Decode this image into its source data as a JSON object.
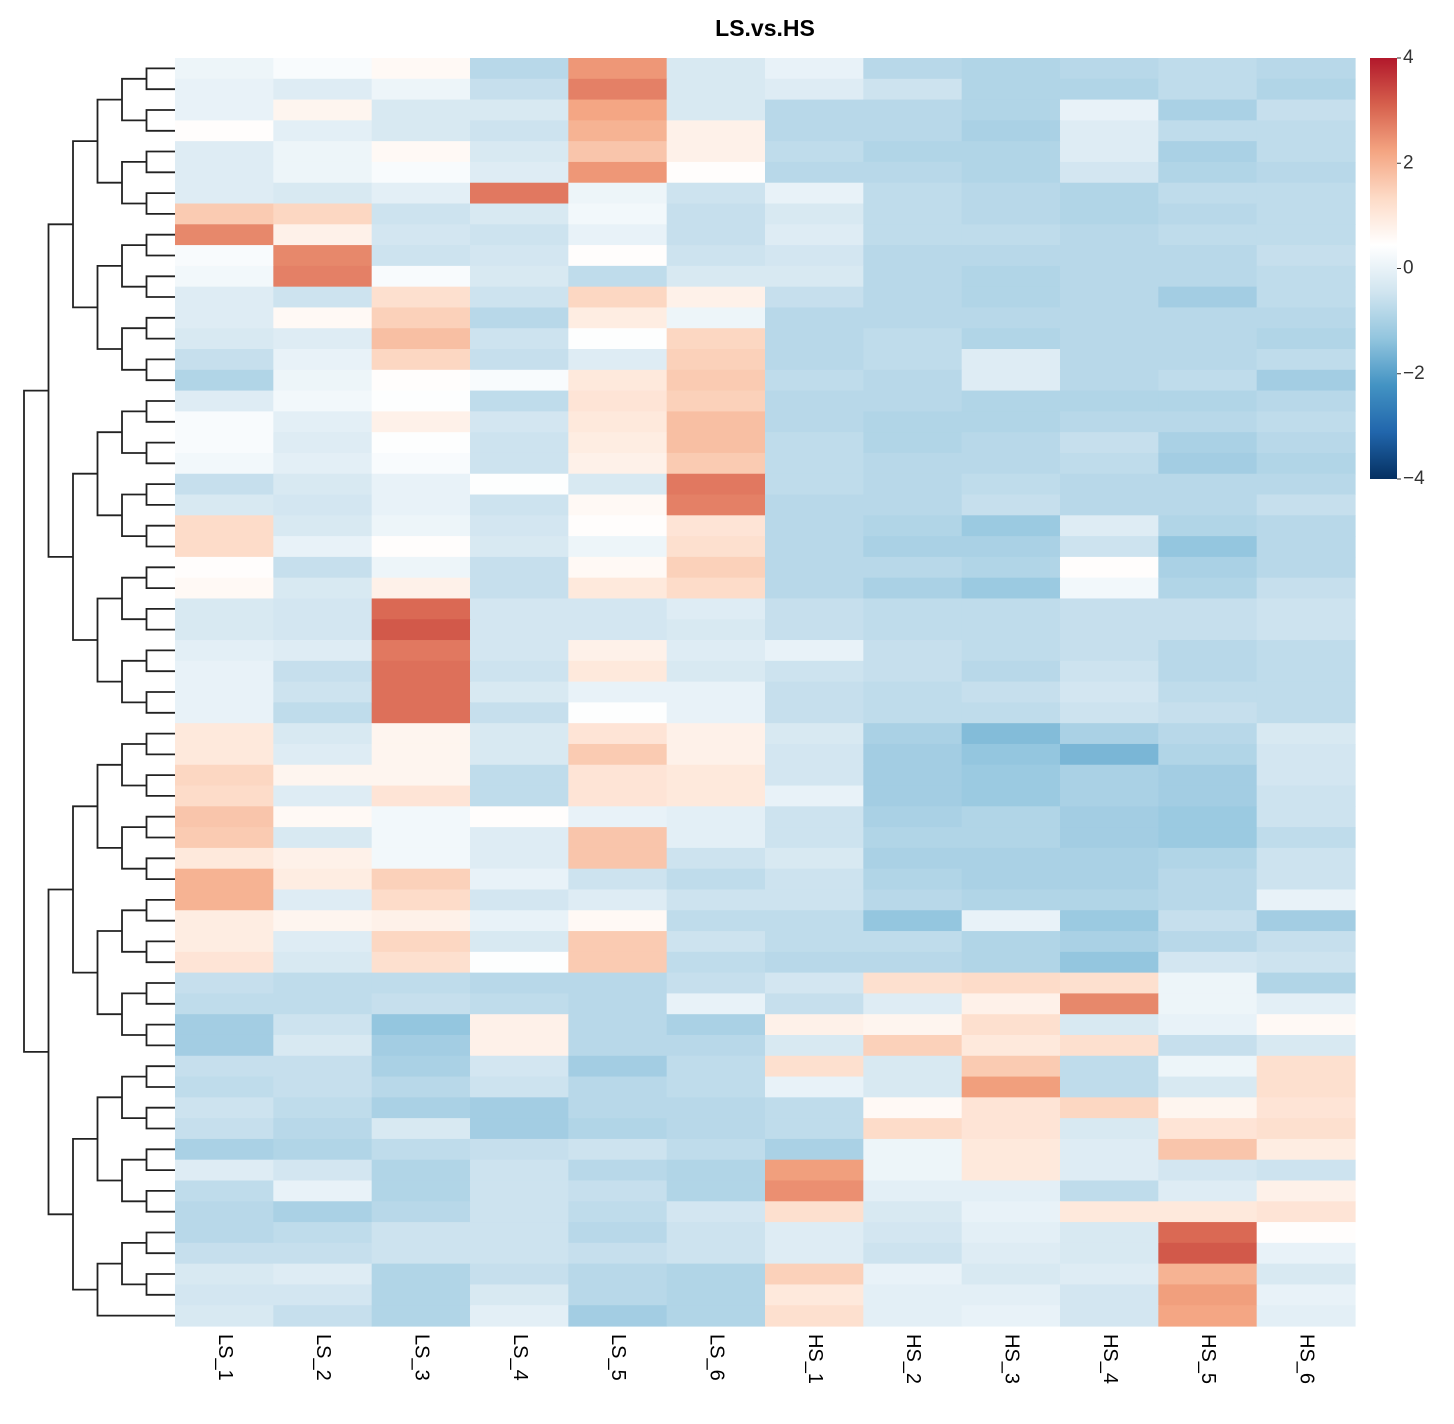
{
  "chart_data": {
    "type": "heatmap",
    "title": "LS.vs.HS",
    "columns": [
      "LS_1",
      "LS_2",
      "LS_3",
      "LS_4",
      "LS_5",
      "LS_6",
      "HS_1",
      "HS_2",
      "HS_3",
      "HS_4",
      "HS_5",
      "HS_6"
    ],
    "color_scale": {
      "min": -4,
      "max": 4,
      "ticks": [
        4,
        2,
        0,
        -2,
        -4
      ],
      "colors": [
        "#053061",
        "#2166ac",
        "#4393c3",
        "#92c5de",
        "#d1e5f0",
        "#ffffff",
        "#fddbc7",
        "#f4a582",
        "#d6604d",
        "#b2182b"
      ]
    },
    "legend_position": "right",
    "dendrogram": "rows",
    "values": [
      [
        0.1,
        0.3,
        0.6,
        -0.8,
        2.4,
        -0.3,
        0.0,
        -0.8,
        -0.9,
        -0.8,
        -0.7,
        -0.8
      ],
      [
        0.0,
        -0.2,
        0.1,
        -0.6,
        2.7,
        -0.3,
        -0.2,
        -0.5,
        -0.9,
        -0.9,
        -0.7,
        -0.9
      ],
      [
        0.0,
        0.7,
        -0.3,
        -0.3,
        2.2,
        -0.3,
        -0.8,
        -0.8,
        -0.9,
        0.0,
        -1.0,
        -0.6
      ],
      [
        0.5,
        -0.1,
        -0.3,
        -0.5,
        2.0,
        0.8,
        -0.8,
        -0.8,
        -1.0,
        -0.2,
        -0.7,
        -0.7
      ],
      [
        -0.2,
        0.1,
        0.6,
        -0.3,
        1.7,
        0.8,
        -0.7,
        -0.9,
        -0.9,
        -0.2,
        -1.0,
        -0.7
      ],
      [
        -0.2,
        0.1,
        0.3,
        -0.2,
        2.4,
        0.5,
        -0.8,
        -0.8,
        -0.9,
        -0.4,
        -0.9,
        -0.8
      ],
      [
        -0.2,
        -0.3,
        -0.1,
        2.8,
        0.1,
        -0.5,
        0.0,
        -0.7,
        -0.8,
        -0.9,
        -0.7,
        -0.7
      ],
      [
        1.6,
        1.4,
        -0.5,
        -0.3,
        0.2,
        -0.6,
        -0.3,
        -0.7,
        -0.8,
        -0.9,
        -0.8,
        -0.7
      ],
      [
        2.6,
        0.8,
        -0.4,
        -0.5,
        0.0,
        -0.6,
        -0.2,
        -0.7,
        -0.7,
        -0.8,
        -0.7,
        -0.7
      ],
      [
        0.3,
        2.6,
        -0.5,
        -0.4,
        0.5,
        -0.5,
        -0.4,
        -0.8,
        -0.8,
        -0.8,
        -0.8,
        -0.6
      ],
      [
        0.2,
        2.7,
        0.3,
        -0.3,
        -0.7,
        -0.3,
        -0.3,
        -0.8,
        -0.9,
        -0.8,
        -0.8,
        -0.7
      ],
      [
        -0.2,
        -0.5,
        1.2,
        -0.5,
        1.4,
        0.8,
        -0.6,
        -0.8,
        -0.9,
        -0.8,
        -1.1,
        -0.7
      ],
      [
        -0.2,
        0.6,
        1.5,
        -0.8,
        0.9,
        0.1,
        -0.8,
        -0.8,
        -0.8,
        -0.8,
        -0.8,
        -0.8
      ],
      [
        -0.3,
        -0.2,
        1.8,
        -0.5,
        0.4,
        1.4,
        -0.8,
        -0.7,
        -0.9,
        -0.8,
        -0.8,
        -0.9
      ],
      [
        -0.6,
        0.0,
        1.4,
        -0.6,
        -0.2,
        1.5,
        -0.8,
        -0.7,
        -0.2,
        -0.8,
        -0.8,
        -0.7
      ],
      [
        -0.9,
        0.1,
        0.5,
        0.3,
        1.0,
        1.6,
        -0.7,
        -0.8,
        -0.2,
        -0.8,
        -0.7,
        -1.1
      ],
      [
        -0.2,
        0.2,
        0.4,
        -0.7,
        1.1,
        1.5,
        -0.8,
        -0.8,
        -0.9,
        -0.9,
        -0.9,
        -0.8
      ],
      [
        0.3,
        -0.1,
        0.8,
        -0.4,
        1.0,
        1.8,
        -0.8,
        -0.9,
        -0.9,
        -0.8,
        -0.8,
        -0.7
      ],
      [
        0.3,
        -0.2,
        0.4,
        -0.5,
        0.9,
        1.8,
        -0.7,
        -0.9,
        -0.8,
        -0.6,
        -1.0,
        -0.8
      ],
      [
        0.2,
        -0.1,
        0.3,
        -0.5,
        0.8,
        1.6,
        -0.7,
        -0.8,
        -0.8,
        -0.7,
        -1.1,
        -0.9
      ],
      [
        -0.6,
        -0.3,
        0.0,
        0.4,
        -0.3,
        2.8,
        -0.7,
        -0.8,
        -0.7,
        -0.8,
        -0.8,
        -0.8
      ],
      [
        -0.3,
        -0.4,
        0.0,
        -0.5,
        0.6,
        2.7,
        -0.8,
        -0.8,
        -0.6,
        -0.8,
        -0.8,
        -0.6
      ],
      [
        1.3,
        -0.3,
        0.1,
        -0.4,
        0.5,
        1.1,
        -0.8,
        -0.9,
        -1.2,
        -0.2,
        -0.9,
        -0.8
      ],
      [
        1.3,
        0.0,
        0.5,
        -0.3,
        0.1,
        1.2,
        -0.8,
        -1.0,
        -1.0,
        -0.5,
        -1.3,
        -0.8
      ],
      [
        0.5,
        -0.6,
        0.1,
        -0.6,
        0.6,
        1.5,
        -0.8,
        -0.8,
        -0.9,
        0.5,
        -1.0,
        -0.8
      ],
      [
        0.6,
        -0.3,
        0.8,
        -0.6,
        1.0,
        1.3,
        -0.8,
        -1.0,
        -1.2,
        0.2,
        -0.9,
        -0.6
      ],
      [
        -0.3,
        -0.4,
        3.0,
        -0.4,
        -0.4,
        -0.2,
        -0.6,
        -0.7,
        -0.7,
        -0.6,
        -0.6,
        -0.5
      ],
      [
        -0.3,
        -0.4,
        3.2,
        -0.4,
        -0.4,
        -0.3,
        -0.6,
        -0.7,
        -0.7,
        -0.6,
        -0.6,
        -0.5
      ],
      [
        -0.1,
        -0.2,
        2.8,
        -0.4,
        0.8,
        -0.2,
        0.0,
        -0.6,
        -0.7,
        -0.6,
        -0.8,
        -0.7
      ],
      [
        0.0,
        -0.6,
        2.9,
        -0.5,
        1.0,
        -0.3,
        -0.5,
        -0.6,
        -0.8,
        -0.5,
        -0.8,
        -0.7
      ],
      [
        0.0,
        -0.5,
        2.9,
        -0.3,
        0.0,
        0.0,
        -0.6,
        -0.7,
        -0.6,
        -0.4,
        -0.7,
        -0.7
      ],
      [
        0.0,
        -0.7,
        2.9,
        -0.6,
        0.4,
        0.0,
        -0.6,
        -0.7,
        -0.7,
        -0.5,
        -0.6,
        -0.7
      ],
      [
        1.0,
        -0.3,
        0.7,
        -0.3,
        1.1,
        0.8,
        -0.3,
        -1.0,
        -1.5,
        -1.0,
        -0.8,
        -0.3
      ],
      [
        1.0,
        -0.2,
        0.7,
        -0.3,
        1.6,
        0.8,
        -0.4,
        -1.1,
        -1.3,
        -1.6,
        -0.9,
        -0.4
      ],
      [
        1.4,
        0.7,
        0.7,
        -0.7,
        1.1,
        1.0,
        -0.4,
        -1.1,
        -1.2,
        -1.0,
        -1.1,
        -0.4
      ],
      [
        1.3,
        -0.2,
        1.1,
        -0.7,
        1.1,
        1.0,
        0.0,
        -1.1,
        -1.2,
        -1.0,
        -1.1,
        -0.5
      ],
      [
        1.7,
        0.6,
        0.2,
        0.5,
        0.0,
        -0.1,
        -0.5,
        -1.0,
        -0.9,
        -1.1,
        -1.2,
        -0.5
      ],
      [
        1.6,
        -0.3,
        0.2,
        -0.2,
        1.7,
        -0.1,
        -0.5,
        -0.9,
        -0.9,
        -1.1,
        -1.2,
        -0.7
      ],
      [
        1.0,
        0.8,
        0.2,
        -0.2,
        1.7,
        -0.5,
        -0.3,
        -1.0,
        -1.0,
        -1.0,
        -0.9,
        -0.5
      ],
      [
        2.0,
        0.9,
        1.5,
        0.0,
        -0.5,
        -0.7,
        -0.5,
        -0.9,
        -1.0,
        -1.0,
        -0.8,
        -0.5
      ],
      [
        2.0,
        -0.2,
        1.3,
        -0.4,
        -0.2,
        -0.5,
        -0.5,
        -0.8,
        -0.9,
        -0.9,
        -0.8,
        0.0
      ],
      [
        0.9,
        0.7,
        0.8,
        0.0,
        0.6,
        -0.7,
        -0.7,
        -1.3,
        0.0,
        -1.2,
        -0.6,
        -1.1
      ],
      [
        0.9,
        -0.2,
        1.4,
        -0.3,
        1.6,
        -0.5,
        -0.7,
        -0.7,
        -0.9,
        -1.0,
        -0.8,
        -0.6
      ],
      [
        1.1,
        -0.3,
        1.2,
        0.4,
        1.6,
        -0.7,
        -0.8,
        -0.8,
        -0.9,
        -1.3,
        -0.4,
        -0.5
      ],
      [
        -0.6,
        -0.7,
        -0.7,
        -0.8,
        -0.8,
        -0.6,
        -0.4,
        1.2,
        1.3,
        1.2,
        0.1,
        -0.9
      ],
      [
        -0.7,
        -0.7,
        -0.6,
        -0.7,
        -0.8,
        0.0,
        -0.6,
        -0.2,
        0.8,
        2.6,
        0.1,
        -0.1
      ],
      [
        -1.1,
        -0.5,
        -1.3,
        0.8,
        -0.8,
        -1.0,
        0.8,
        0.7,
        1.2,
        -0.3,
        0.0,
        0.6
      ],
      [
        -1.1,
        -0.3,
        -1.1,
        0.8,
        -0.8,
        -0.8,
        -0.3,
        1.5,
        1.0,
        1.2,
        -0.6,
        -0.3
      ],
      [
        -0.6,
        -0.6,
        -1.0,
        -0.4,
        -1.1,
        -0.7,
        1.2,
        -0.3,
        1.6,
        -0.7,
        0.1,
        1.2
      ],
      [
        -0.7,
        -0.6,
        -0.8,
        -0.5,
        -0.8,
        -0.7,
        0.0,
        -0.3,
        2.3,
        -0.7,
        -0.3,
        1.2
      ],
      [
        -0.5,
        -0.7,
        -1.0,
        -1.1,
        -0.8,
        -0.8,
        -0.7,
        0.6,
        1.1,
        1.4,
        0.7,
        1.1
      ],
      [
        -0.6,
        -0.8,
        -0.3,
        -1.1,
        -0.9,
        -0.8,
        -0.7,
        1.3,
        1.1,
        -0.3,
        1.1,
        1.2
      ],
      [
        -1.0,
        -0.9,
        -0.7,
        -0.6,
        -0.5,
        -0.7,
        -1.0,
        0.1,
        1.0,
        -0.2,
        1.7,
        0.9
      ],
      [
        -0.2,
        -0.4,
        -0.9,
        -0.5,
        -0.8,
        -0.9,
        2.3,
        0.1,
        1.0,
        -0.2,
        -0.4,
        -0.5
      ],
      [
        -0.7,
        0.0,
        -0.9,
        -0.5,
        -0.6,
        -0.9,
        2.5,
        -0.1,
        -0.1,
        -0.7,
        -0.2,
        0.8
      ],
      [
        -0.8,
        -1.0,
        -0.8,
        -0.5,
        -0.7,
        -0.4,
        1.2,
        -0.3,
        0.0,
        1.0,
        1.0,
        1.1
      ],
      [
        -0.8,
        -0.7,
        -0.5,
        -0.5,
        -0.8,
        -0.5,
        -0.2,
        -0.4,
        -0.1,
        -0.3,
        3.0,
        0.5
      ],
      [
        -0.6,
        -0.6,
        -0.5,
        -0.5,
        -0.6,
        -0.5,
        -0.2,
        -0.5,
        -0.2,
        -0.3,
        3.2,
        0.0
      ],
      [
        -0.3,
        -0.2,
        -0.9,
        -0.6,
        -0.8,
        -0.9,
        1.5,
        0.0,
        -0.3,
        -0.2,
        2.0,
        -0.3
      ],
      [
        -0.4,
        -0.4,
        -0.9,
        -0.3,
        -0.8,
        -0.9,
        1.0,
        -0.1,
        -0.1,
        -0.4,
        2.3,
        0.0
      ],
      [
        -0.3,
        -0.6,
        -0.9,
        -0.1,
        -1.1,
        -0.9,
        1.2,
        -0.1,
        0.0,
        -0.4,
        2.2,
        -0.1
      ]
    ]
  }
}
